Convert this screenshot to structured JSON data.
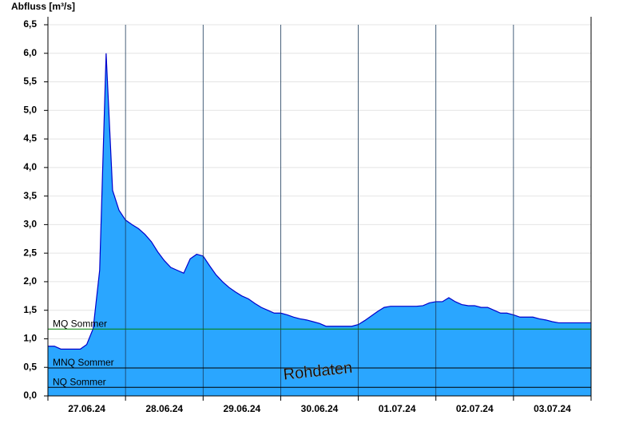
{
  "chart_data": {
    "type": "area",
    "y_label": "Abfluss [m³/s]",
    "x_tick_labels": [
      "27.06.24",
      "28.06.24",
      "29.06.24",
      "30.06.24",
      "01.07.24",
      "02.07.24",
      "03.07.24"
    ],
    "color": "#2aa6ff",
    "line_color": "#0000cc",
    "values": [
      0.87,
      0.87,
      0.82,
      0.82,
      0.82,
      0.82,
      0.9,
      1.18,
      2.2,
      6.0,
      3.6,
      3.25,
      3.08,
      3.0,
      2.93,
      2.83,
      2.7,
      2.52,
      2.37,
      2.25,
      2.2,
      2.15,
      2.4,
      2.48,
      2.45,
      2.28,
      2.12,
      2.0,
      1.9,
      1.82,
      1.75,
      1.7,
      1.62,
      1.55,
      1.5,
      1.45,
      1.45,
      1.42,
      1.38,
      1.35,
      1.33,
      1.3,
      1.27,
      1.22,
      1.22,
      1.22,
      1.22,
      1.22,
      1.25,
      1.32,
      1.4,
      1.48,
      1.55,
      1.57,
      1.57,
      1.57,
      1.57,
      1.57,
      1.58,
      1.63,
      1.65,
      1.65,
      1.72,
      1.65,
      1.6,
      1.58,
      1.58,
      1.55,
      1.55,
      1.5,
      1.45,
      1.45,
      1.42,
      1.38,
      1.38,
      1.38,
      1.35,
      1.33,
      1.3,
      1.28,
      1.28,
      1.28,
      1.28,
      1.28,
      1.28
    ],
    "ylim": [
      0,
      6.5
    ],
    "yticks": [
      {
        "value": 0,
        "label": "0,0"
      },
      {
        "value": 0.5,
        "label": "0,5"
      },
      {
        "value": 1,
        "label": "1,0"
      },
      {
        "value": 1.5,
        "label": "1,5"
      },
      {
        "value": 2,
        "label": "2,0"
      },
      {
        "value": 2.5,
        "label": "2,5"
      },
      {
        "value": 3,
        "label": "3,0"
      },
      {
        "value": 3.5,
        "label": "3,5"
      },
      {
        "value": 4,
        "label": "4,0"
      },
      {
        "value": 4.5,
        "label": "4,5"
      },
      {
        "value": 5,
        "label": "5,0"
      },
      {
        "value": 5.5,
        "label": "5,5"
      },
      {
        "value": 6,
        "label": "6,0"
      },
      {
        "value": 6.5,
        "label": "6,5"
      }
    ],
    "grid": true,
    "reference_lines": [
      {
        "label": "MQ Sommer",
        "value": 1.17,
        "color": "#008000"
      },
      {
        "label": "MNQ Sommer",
        "value": 0.49,
        "color": "#000000"
      },
      {
        "label": "NQ Sommer",
        "value": 0.15,
        "color": "#000000"
      }
    ],
    "annotation": "Rohdaten"
  }
}
